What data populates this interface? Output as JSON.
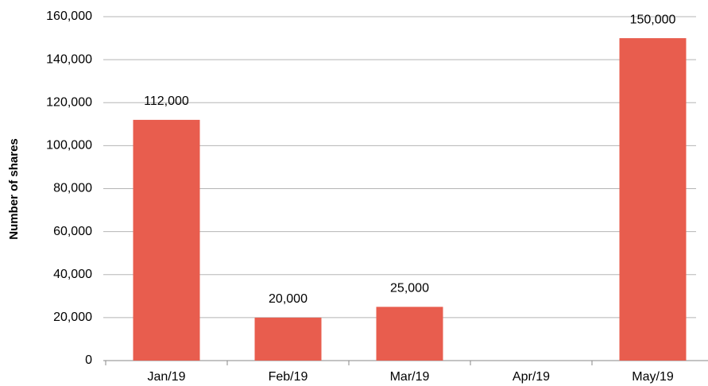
{
  "chart_data": {
    "type": "bar",
    "y_axis_label": "Number of shares",
    "categories": [
      "Jan/19",
      "Feb/19",
      "Mar/19",
      "Apr/19",
      "May/19"
    ],
    "values": [
      112000,
      20000,
      25000,
      null,
      150000
    ],
    "value_labels": [
      "112,000",
      "20,000",
      "25,000",
      null,
      "150,000"
    ],
    "color": "#e85d4e",
    "ylim": [
      0,
      160000
    ],
    "yticks": [
      0,
      {
        "value": 20000,
        "label": "20,000"
      },
      {
        "value": 40000,
        "label": "40,000"
      },
      {
        "value": 60000,
        "label": "60,000"
      },
      {
        "value": 80000,
        "label": "80,000"
      },
      {
        "value": 100000,
        "label": "100,000"
      },
      {
        "value": 120000,
        "label": "120,000"
      },
      {
        "value": 140000,
        "label": "140,000"
      },
      {
        "value": 160000,
        "label": "160,000"
      }
    ],
    "grid": true
  }
}
